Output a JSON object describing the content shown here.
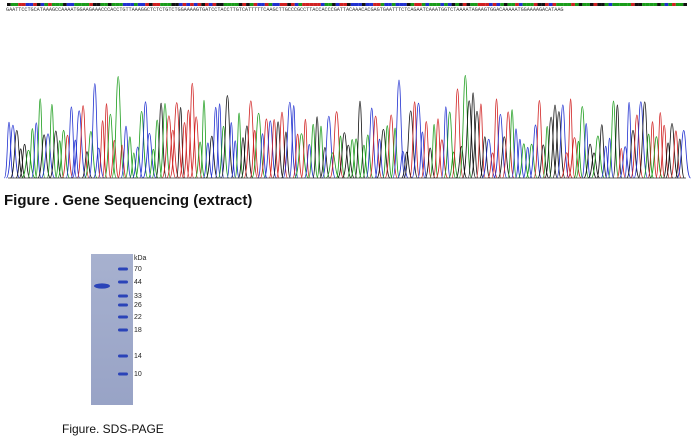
{
  "sequencing": {
    "sequence": "GAATTCCTGCATAAAGCCAAAATGGAAGAAACCCACCTGTTAAAGGCTCTCTGTCTGGAAAAGTGATCCTACCTTGTCATTTTTCAAGCTTGCCCGCCTTACCACCCGATTACAAACACGAGTGAATTTCTCAGAATCAAATGGTCTAAAATAGAAGTGGACAAAAATGGAAAAGACATAAG",
    "caption": "Figure . Gene Sequencing (extract)"
  },
  "gel": {
    "unit": "kDa",
    "markers": [
      70,
      44,
      33,
      26,
      22,
      18,
      14,
      10
    ],
    "caption": "Figure. SDS-PAGE"
  }
}
